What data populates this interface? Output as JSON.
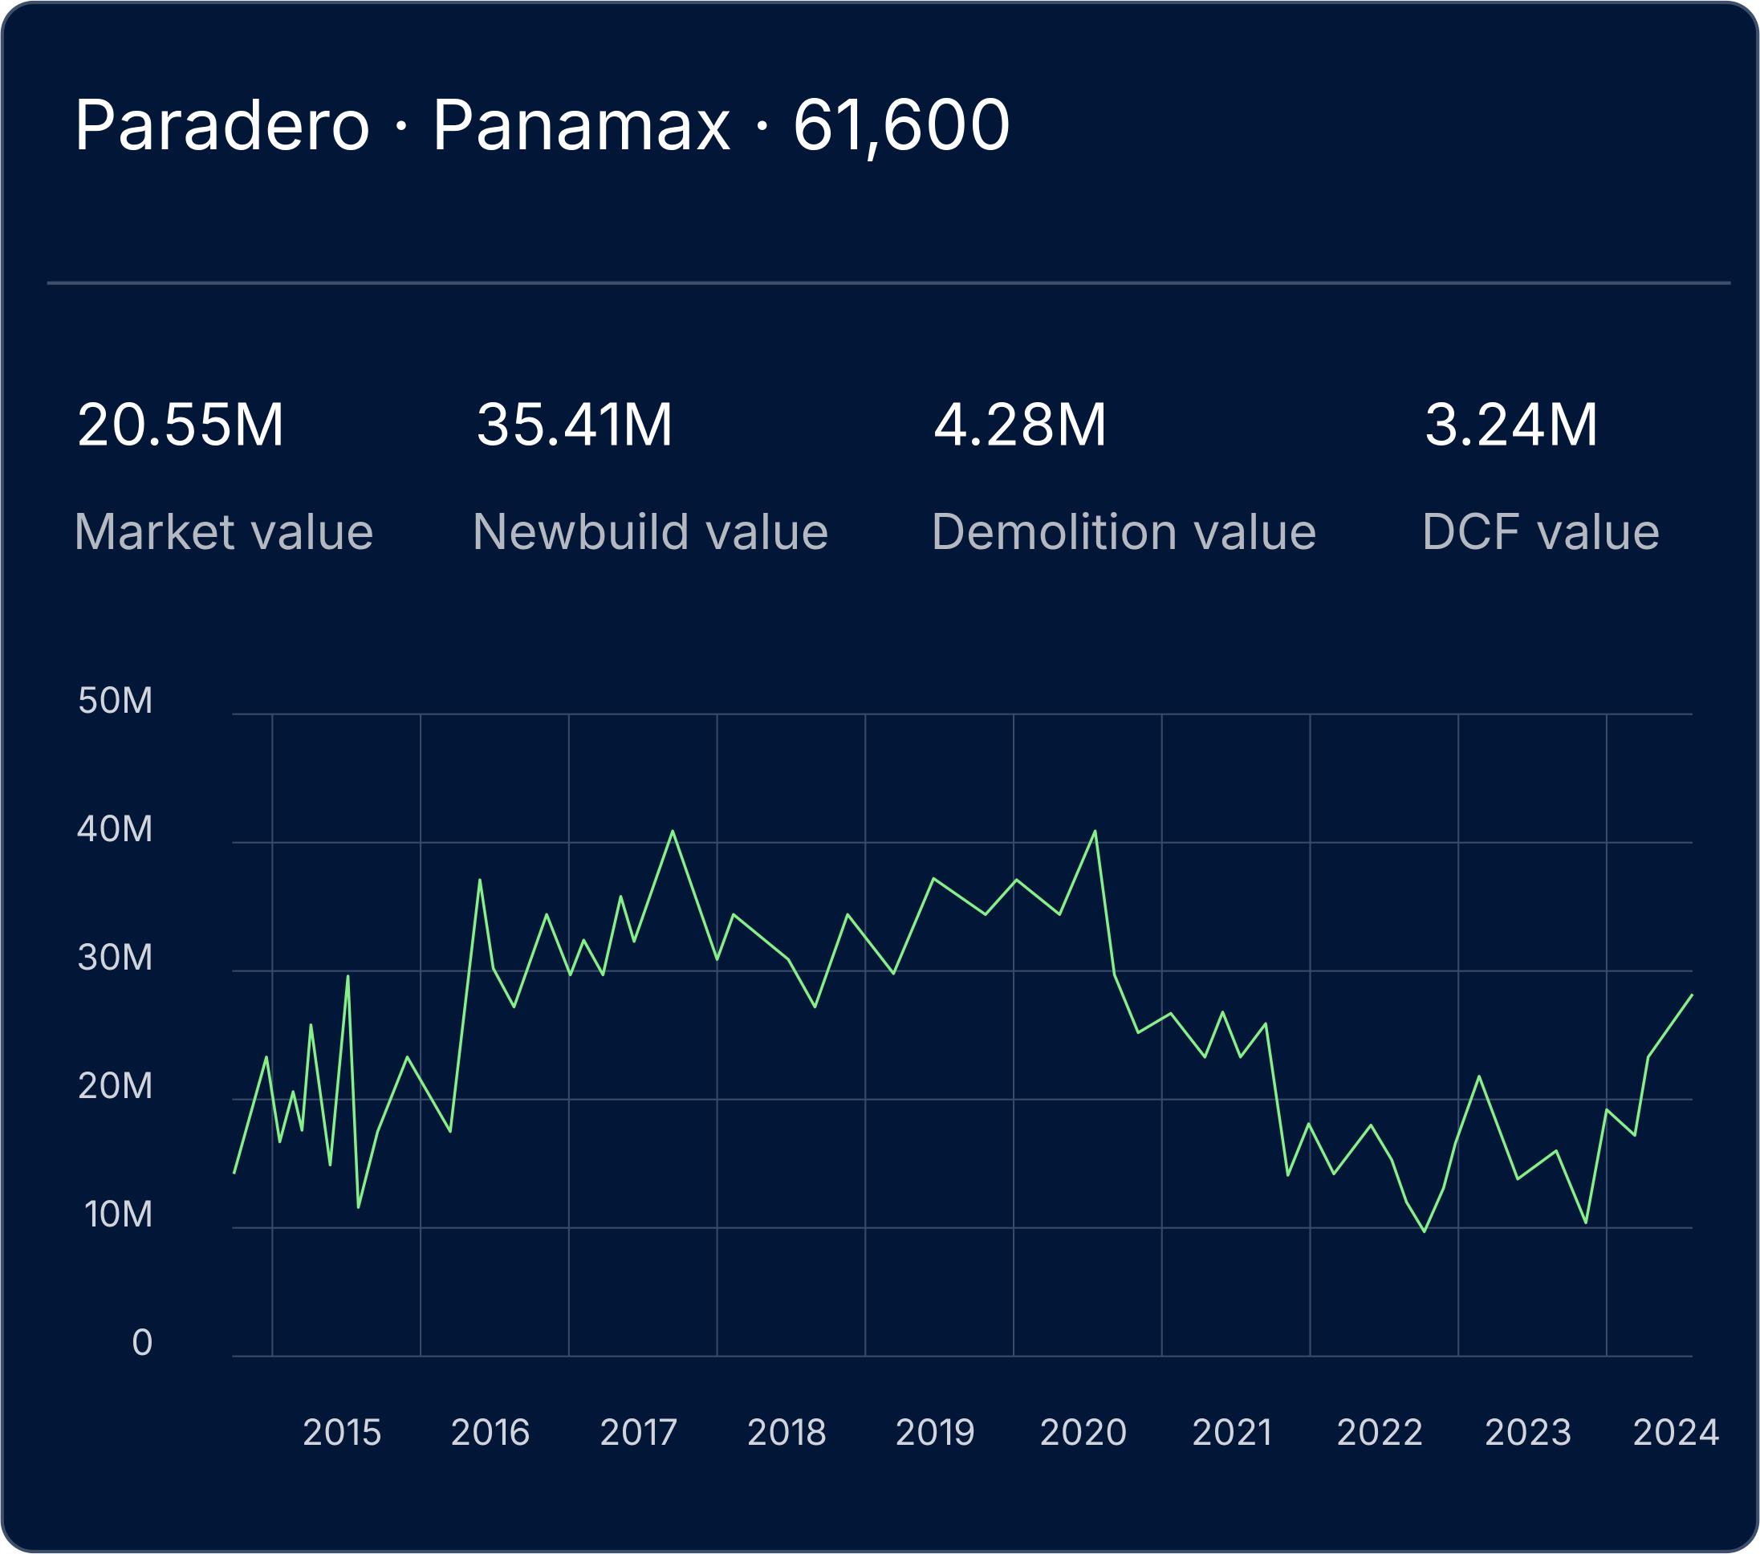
{
  "header": {
    "title": "Paradero · Panamax · 61,600"
  },
  "stats": [
    {
      "value": "20.55M",
      "label": "Market value"
    },
    {
      "value": "35.41M",
      "label": "Newbuild value"
    },
    {
      "value": "4.28M",
      "label": "Demolition value"
    },
    {
      "value": "3.24M",
      "label": "DCF value"
    }
  ],
  "chart_data": {
    "type": "line",
    "color": "#86ef8a",
    "grid": true,
    "x": [
      2014.74,
      2014.96,
      2015.05,
      2015.14,
      2015.2,
      2015.26,
      2015.39,
      2015.51,
      2015.58,
      2015.71,
      2015.91,
      2016.2,
      2016.4,
      2016.49,
      2016.63,
      2016.85,
      2017.01,
      2017.1,
      2017.23,
      2017.35,
      2017.44,
      2017.7,
      2018.0,
      2018.11,
      2018.48,
      2018.66,
      2018.88,
      2019.19,
      2019.46,
      2019.81,
      2020.02,
      2020.31,
      2020.55,
      2020.68,
      2020.84,
      2021.06,
      2021.29,
      2021.41,
      2021.53,
      2021.7,
      2021.85,
      2021.99,
      2022.16,
      2022.41,
      2022.55,
      2022.65,
      2022.77,
      2022.9,
      2022.98,
      2023.14,
      2023.4,
      2023.66,
      2023.86,
      2024.0,
      2024.19,
      2024.28,
      2024.58
    ],
    "values": [
      14.2,
      23.3,
      16.7,
      20.6,
      17.6,
      25.8,
      14.9,
      29.6,
      11.6,
      17.5,
      23.3,
      17.5,
      37.1,
      30.2,
      27.2,
      34.4,
      29.7,
      32.4,
      29.7,
      35.8,
      32.3,
      40.9,
      30.9,
      34.4,
      30.9,
      27.2,
      34.4,
      29.8,
      37.2,
      34.4,
      37.1,
      34.4,
      40.9,
      29.7,
      25.2,
      26.7,
      23.3,
      26.8,
      23.3,
      25.9,
      14.1,
      18.1,
      14.2,
      18.0,
      15.3,
      12.0,
      9.7,
      13.1,
      16.6,
      21.8,
      13.8,
      16.0,
      10.4,
      19.2,
      17.2,
      23.3,
      28.2
    ],
    "xlim": [
      2014.73,
      2024.58
    ],
    "xticks": [
      2015,
      2016,
      2017,
      2018,
      2019,
      2020,
      2021,
      2022,
      2023,
      2024
    ],
    "ylim": [
      0,
      50
    ],
    "yticks": [
      0,
      {
        "value": 10,
        "label": "10M"
      },
      {
        "value": 20,
        "label": "20M"
      },
      {
        "value": 30,
        "label": "30M"
      },
      {
        "value": 40,
        "label": "40M"
      },
      {
        "value": 50,
        "label": "50M"
      }
    ]
  }
}
